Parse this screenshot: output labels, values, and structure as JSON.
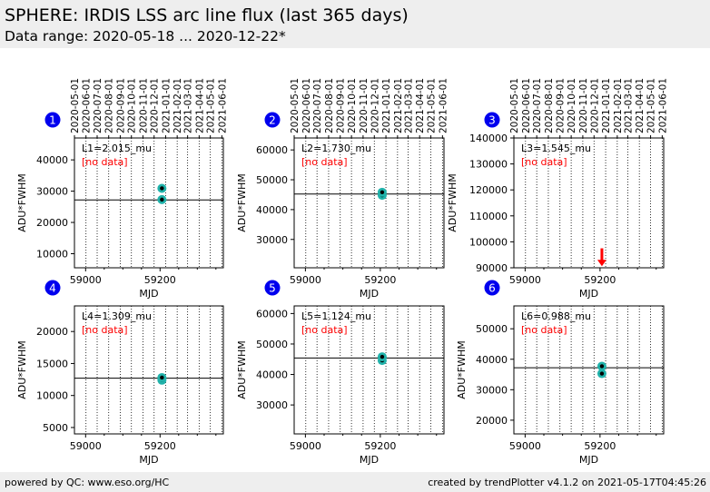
{
  "header": {
    "title": "SPHERE: IRDIS LSS arc line flux (last 365 days)",
    "subtitle": "Data range: 2020-05-18 ... 2020-12-22*"
  },
  "footer": {
    "left": "powered by QC: www.eso.org/HC",
    "right": "created by trendPlotter v4.1.2 on 2021-05-17T04:45:26"
  },
  "colors": {
    "header_bg": "#eeeeee",
    "badge": "#0000ee",
    "marker_fill": "#20b2aa",
    "marker_dot": "#000000",
    "no_data": "#ff0000",
    "arrow": "#ff0000"
  },
  "chart_data": [
    {
      "type": "scatter",
      "badge": "1",
      "label": "L1=2.015_mu",
      "note": "[no data]",
      "xlabel": "MJD",
      "ylabel": "ADU*FWHM",
      "xlim": [
        58970,
        59370
      ],
      "ylim": [
        5500,
        47000
      ],
      "xticks": [
        59000,
        59200
      ],
      "yticks": [
        10000,
        20000,
        30000,
        40000
      ],
      "yticklabels": [
        "10000",
        "20000",
        "30000",
        "40000"
      ],
      "hline": 27200,
      "points": [
        {
          "x": 59205,
          "y": 27300
        },
        {
          "x": 59205,
          "y": 30900
        }
      ],
      "date_ticks": [
        "2020-05-01",
        "2020-06-01",
        "2020-07-01",
        "2020-08-01",
        "2020-09-01",
        "2020-10-01",
        "2020-11-01",
        "2020-12-01",
        "2021-01-01",
        "2021-02-01",
        "2021-03-01",
        "2021-04-01",
        "2021-05-01",
        "2021-06-01"
      ]
    },
    {
      "type": "scatter",
      "badge": "2",
      "label": "L2=1.730_mu",
      "note": "[no data]",
      "xlabel": "MJD",
      "ylabel": "ADU*FWHM",
      "xlim": [
        58970,
        59370
      ],
      "ylim": [
        20500,
        64000
      ],
      "xticks": [
        59000,
        59200
      ],
      "yticks": [
        30000,
        40000,
        50000,
        60000
      ],
      "yticklabels": [
        "30000",
        "40000",
        "50000",
        "60000"
      ],
      "hline": 45200,
      "points": [
        {
          "x": 59205,
          "y": 44800
        },
        {
          "x": 59205,
          "y": 45800
        }
      ],
      "date_ticks": [
        "2020-05-01",
        "2020-06-01",
        "2020-07-01",
        "2020-08-01",
        "2020-09-01",
        "2020-10-01",
        "2020-11-01",
        "2020-12-01",
        "2021-01-01",
        "2021-02-01",
        "2021-03-01",
        "2021-04-01",
        "2021-05-01",
        "2021-06-01"
      ]
    },
    {
      "type": "scatter",
      "badge": "3",
      "label": "L3=1.545_mu",
      "note": "[no data]",
      "xlabel": "MJD",
      "ylabel": "ADU*FWHM",
      "xlim": [
        58970,
        59370
      ],
      "ylim": [
        90000,
        140000
      ],
      "xticks": [
        59000,
        59200
      ],
      "yticks": [
        90000,
        100000,
        110000,
        120000,
        130000,
        140000
      ],
      "yticklabels": [
        "90000",
        "100000",
        "110000",
        "120000",
        "130000",
        "140000"
      ],
      "hline": null,
      "points": [],
      "arrow": {
        "x": 59205,
        "y_from": 97500,
        "y_to": 90600
      },
      "date_ticks": [
        "2020-05-01",
        "2020-06-01",
        "2020-07-01",
        "2020-08-01",
        "2020-09-01",
        "2020-10-01",
        "2020-11-01",
        "2020-12-01",
        "2021-01-01",
        "2021-02-01",
        "2021-03-01",
        "2021-04-01",
        "2021-05-01",
        "2021-06-01"
      ]
    },
    {
      "type": "scatter",
      "badge": "4",
      "label": "L4=1.309_mu",
      "note": "[no data]",
      "xlabel": "MJD",
      "ylabel": "ADU*FWHM",
      "xlim": [
        58970,
        59370
      ],
      "ylim": [
        4000,
        24000
      ],
      "xticks": [
        59000,
        59200
      ],
      "yticks": [
        5000,
        10000,
        15000,
        20000
      ],
      "yticklabels": [
        "5000",
        "10000",
        "15000",
        "20000"
      ],
      "hline": 12700,
      "points": [
        {
          "x": 59205,
          "y": 12400
        },
        {
          "x": 59205,
          "y": 12800
        }
      ],
      "date_ticks": []
    },
    {
      "type": "scatter",
      "badge": "5",
      "label": "L5=1.124_mu",
      "note": "[no data]",
      "xlabel": "MJD",
      "ylabel": "ADU*FWHM",
      "xlim": [
        58970,
        59370
      ],
      "ylim": [
        20500,
        62500
      ],
      "xticks": [
        59000,
        59200
      ],
      "yticks": [
        30000,
        40000,
        50000,
        60000
      ],
      "yticklabels": [
        "30000",
        "40000",
        "50000",
        "60000"
      ],
      "hline": 45400,
      "points": [
        {
          "x": 59205,
          "y": 44600
        },
        {
          "x": 59205,
          "y": 45800
        }
      ],
      "date_ticks": []
    },
    {
      "type": "scatter",
      "badge": "6",
      "label": "L6=0.988_mu",
      "note": "[no data]",
      "xlabel": "MJD",
      "ylabel": "ADU*FWHM",
      "xlim": [
        58970,
        59370
      ],
      "ylim": [
        15500,
        57500
      ],
      "xticks": [
        59000,
        59200
      ],
      "yticks": [
        20000,
        30000,
        40000,
        50000
      ],
      "yticklabels": [
        "20000",
        "30000",
        "40000",
        "50000"
      ],
      "hline": 37200,
      "points": [
        {
          "x": 59205,
          "y": 35300
        },
        {
          "x": 59205,
          "y": 37700
        }
      ],
      "date_ticks": []
    }
  ]
}
